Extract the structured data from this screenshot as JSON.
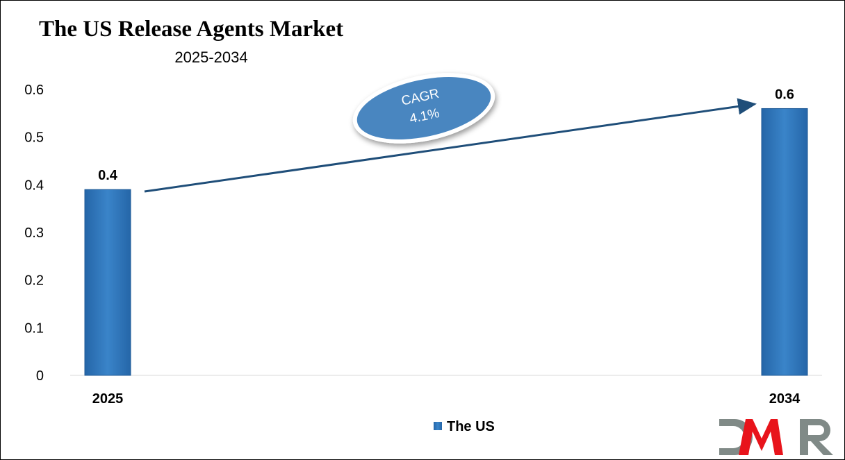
{
  "chart_data": {
    "type": "bar",
    "title": "The US Release Agents Market",
    "subtitle": "2025-2034",
    "categories": [
      "2025",
      "2034"
    ],
    "series": [
      {
        "name": "The US",
        "values": [
          0.39,
          0.56
        ],
        "data_labels": [
          "0.4",
          "0.6"
        ]
      }
    ],
    "ylim": [
      0,
      0.6
    ],
    "yticks": [
      "0",
      "0.1",
      "0.2",
      "0.3",
      "0.4",
      "0.5",
      "0.6"
    ],
    "grid": false,
    "legend": "bottom-center",
    "annotation": {
      "line1": "CAGR",
      "line2": "4.1%"
    },
    "colors": {
      "bar": "#2E75B6",
      "arrow": "#1F4E79",
      "ellipse": "#4A86C0"
    }
  },
  "logo": {
    "text": "DMR",
    "colors": [
      "#808A87",
      "#E8141B"
    ]
  }
}
